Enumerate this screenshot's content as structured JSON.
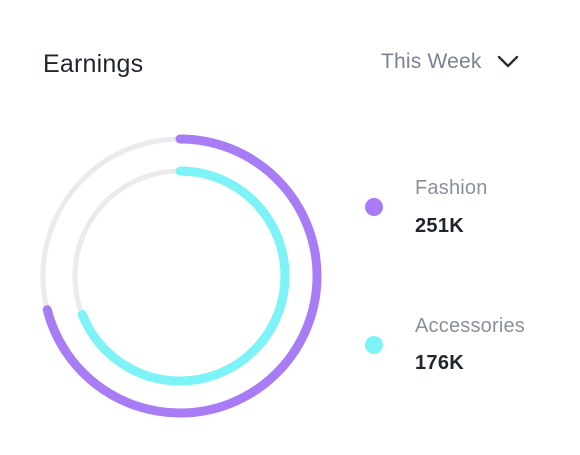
{
  "card": {
    "title": "Earnings",
    "period_select": {
      "selected": "This Week",
      "icon": "chevron-down-icon"
    }
  },
  "colors": {
    "fashion": "#a77cf5",
    "accessories": "#7ef3f7",
    "track": "#ebebef"
  },
  "chart_data": {
    "type": "pie",
    "variant": "concentric-radial-rings",
    "series": [
      {
        "name": "Fashion",
        "label": "251K",
        "value": 251000,
        "ring": "outer",
        "fraction": 0.71
      },
      {
        "name": "Accessories",
        "label": "176K",
        "value": 176000,
        "ring": "inner",
        "fraction": 0.69
      }
    ]
  },
  "legend": [
    {
      "name": "Fashion",
      "value": "251K"
    },
    {
      "name": "Accessories",
      "value": "176K"
    }
  ]
}
